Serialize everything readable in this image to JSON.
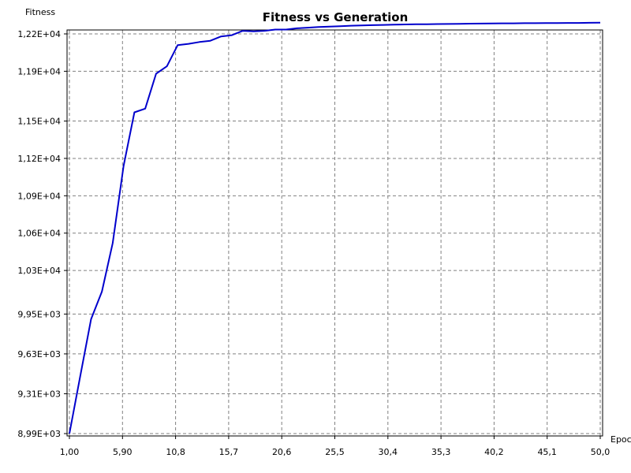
{
  "chart_data": {
    "type": "line",
    "title": "Fitness vs Generation",
    "ylabel": "Fitness",
    "xlabel": "Epoc",
    "xlim": [
      1,
      50
    ],
    "ylim": [
      8990,
      12200
    ],
    "x_ticks": [
      1.0,
      5.9,
      10.8,
      15.7,
      20.6,
      25.5,
      30.4,
      35.3,
      40.2,
      45.1,
      50.0
    ],
    "x_tick_labels": [
      "1,00",
      "5,90",
      "10,8",
      "15,7",
      "20,6",
      "25,5",
      "30,4",
      "35,3",
      "40,2",
      "45,1",
      "50,0"
    ],
    "y_ticks": [
      8990,
      9310,
      9630,
      9950,
      10300,
      10600,
      10900,
      11200,
      11500,
      11900,
      12200
    ],
    "y_tick_labels": [
      "8,99E+03",
      "9,31E+03",
      "9,63E+03",
      "9,95E+03",
      "1,03E+04",
      "1,06E+04",
      "1,09E+04",
      "1,12E+04",
      "1,15E+04",
      "1,19E+04",
      "1,22E+04"
    ],
    "grid": true,
    "series": [
      {
        "color": "#0000cc",
        "x": [
          1,
          2,
          3,
          4,
          5,
          6,
          7,
          8,
          9,
          10,
          11,
          12,
          13,
          14,
          15,
          16,
          17,
          18,
          19,
          20,
          21,
          22,
          23,
          24,
          25,
          26,
          27,
          28,
          29,
          30,
          31,
          32,
          33,
          34,
          35,
          36,
          37,
          38,
          39,
          40,
          41,
          42,
          43,
          44,
          45,
          46,
          47,
          48,
          49,
          50
        ],
        "y": [
          8990,
          9450,
          9910,
          10130,
          10520,
          11140,
          11570,
          11600,
          11880,
          11940,
          12110,
          12120,
          12135,
          12145,
          12180,
          12190,
          12225,
          12220,
          12225,
          12235,
          12235,
          12245,
          12250,
          12255,
          12258,
          12262,
          12266,
          12268,
          12270,
          12272,
          12274,
          12276,
          12277,
          12278,
          12279,
          12280,
          12281,
          12282,
          12283,
          12284,
          12285,
          12285,
          12286,
          12286,
          12287,
          12287,
          12288,
          12288,
          12289,
          12290
        ]
      }
    ]
  }
}
